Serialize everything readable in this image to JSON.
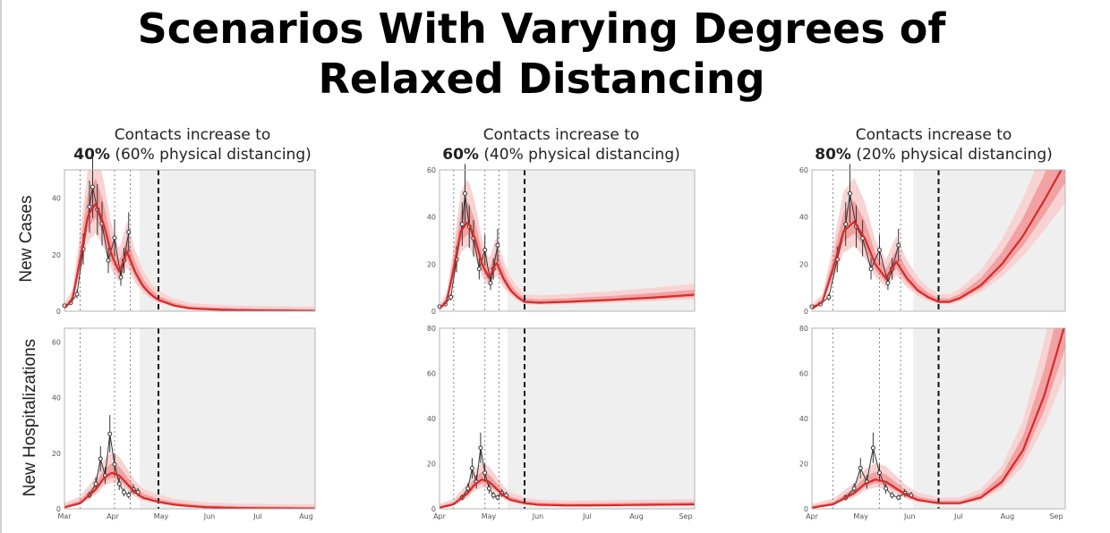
{
  "slide": {
    "title_line1": "Scenarios With Varying Degrees of",
    "title_line2": "Relaxed Distancing"
  },
  "row_labels": {
    "top": "New Cases",
    "bottom": "New Hospitalizations"
  },
  "panels": [
    {
      "title_line1": "Contacts increase to",
      "title_pct": "40%",
      "title_rest": " (60% physical distancing)"
    },
    {
      "title_line1": "Contacts increase to",
      "title_pct": "60%",
      "title_rest": " (40% physical distancing)"
    },
    {
      "title_line1": "Contacts increase to",
      "title_pct": "80%",
      "title_rest": " (20% physical distancing)"
    }
  ],
  "colors": {
    "model_line": "#d42b2b",
    "band_inner": "#f2a2a2",
    "band_outer": "#f8d3d3",
    "shade": "#efefef",
    "observed": "#333333"
  },
  "chart_data": [
    {
      "type": "line",
      "panel": "40% contacts",
      "metric": "New Cases",
      "ylim": [
        0,
        50
      ],
      "yticks": [
        0,
        20,
        40
      ],
      "x": [
        0,
        5,
        10,
        15,
        20,
        25,
        30,
        35,
        40,
        45,
        50,
        55,
        60,
        70,
        80,
        100,
        120,
        140,
        160
      ],
      "model": [
        1,
        4,
        18,
        34,
        38,
        31,
        20,
        14,
        21,
        14,
        9,
        6,
        4,
        2,
        1,
        0.5,
        0.3,
        0.2,
        0.1
      ],
      "observed": [
        2,
        3,
        6,
        22,
        37,
        44,
        36,
        31,
        18,
        26,
        12,
        18,
        28
      ],
      "observed_x": [
        0,
        4,
        8,
        12,
        16,
        18,
        21,
        24,
        28,
        32,
        36,
        38,
        41
      ],
      "vlines_dotted": [
        10,
        32,
        42
      ],
      "vline_dashed": 60,
      "shade_start": 48
    },
    {
      "type": "line",
      "panel": "60% contacts",
      "metric": "New Cases",
      "ylim": [
        0,
        60
      ],
      "yticks": [
        0,
        20,
        40,
        60
      ],
      "x": [
        0,
        5,
        10,
        15,
        20,
        25,
        30,
        35,
        40,
        45,
        50,
        55,
        60,
        70,
        90,
        120,
        150,
        180
      ],
      "model": [
        1,
        4,
        18,
        34,
        38,
        31,
        20,
        14,
        21,
        14,
        9,
        6,
        4,
        3.6,
        4,
        4.8,
        5.8,
        7
      ],
      "observed": [
        2,
        3,
        6,
        22,
        37,
        50,
        36,
        31,
        18,
        26,
        12,
        18,
        28
      ],
      "observed_x": [
        0,
        4,
        8,
        12,
        16,
        18,
        21,
        24,
        28,
        32,
        36,
        38,
        41
      ],
      "vlines_dotted": [
        10,
        32,
        42
      ],
      "vline_dashed": 60,
      "shade_start": 48
    },
    {
      "type": "line",
      "panel": "80% contacts",
      "metric": "New Cases",
      "ylim": [
        0,
        60
      ],
      "yticks": [
        0,
        20,
        40,
        60
      ],
      "x": [
        0,
        5,
        10,
        15,
        20,
        25,
        30,
        35,
        40,
        45,
        50,
        55,
        60,
        65,
        70,
        80,
        90,
        100,
        110,
        120
      ],
      "model": [
        1,
        4,
        18,
        34,
        38,
        31,
        20,
        14,
        21,
        14,
        9,
        6,
        4,
        4,
        5.5,
        11,
        20,
        32,
        47,
        63
      ],
      "observed": [
        2,
        3,
        6,
        22,
        37,
        50,
        36,
        31,
        18,
        26,
        12,
        18,
        28
      ],
      "observed_x": [
        0,
        4,
        8,
        12,
        16,
        18,
        21,
        24,
        28,
        32,
        36,
        38,
        41
      ],
      "vlines_dotted": [
        10,
        32,
        42
      ],
      "vline_dashed": 60,
      "shade_start": 48
    },
    {
      "type": "line",
      "panel": "40% contacts",
      "metric": "New Hospitalizations",
      "ylim": [
        0,
        65
      ],
      "yticks": [
        0,
        20,
        40,
        60
      ],
      "x": [
        0,
        10,
        20,
        25,
        30,
        35,
        40,
        45,
        50,
        60,
        70,
        80,
        90,
        110,
        130,
        160
      ],
      "model": [
        0.5,
        2,
        7,
        11,
        13,
        12,
        9,
        6,
        4,
        2.5,
        1.5,
        1,
        0.6,
        0.3,
        0.2,
        0.1
      ],
      "observed": [
        5,
        9,
        18,
        12,
        27,
        16,
        9,
        6,
        5,
        7,
        6
      ],
      "observed_x": [
        16,
        20,
        23,
        26,
        29,
        32,
        35,
        38,
        41,
        44,
        47
      ],
      "vlines_dotted": [
        10,
        32,
        42
      ],
      "vline_dashed": 60,
      "shade_start": 48,
      "xticks": [
        "Mar",
        "Apr",
        "May",
        "Jun",
        "Jul",
        "Aug"
      ]
    },
    {
      "type": "line",
      "panel": "60% contacts",
      "metric": "New Hospitalizations",
      "ylim": [
        0,
        80
      ],
      "yticks": [
        0,
        20,
        40,
        60,
        80
      ],
      "x": [
        0,
        10,
        20,
        25,
        30,
        35,
        40,
        45,
        50,
        60,
        70,
        90,
        120,
        150,
        180
      ],
      "model": [
        0.5,
        2,
        7,
        11,
        13,
        12,
        9,
        6,
        4,
        2.5,
        1.8,
        1.5,
        1.6,
        1.8,
        2
      ],
      "observed": [
        5,
        9,
        18,
        12,
        27,
        16,
        9,
        6,
        5,
        7,
        6
      ],
      "observed_x": [
        16,
        20,
        23,
        26,
        29,
        32,
        35,
        38,
        41,
        44,
        47
      ],
      "vlines_dotted": [
        10,
        32,
        42
      ],
      "vline_dashed": 60,
      "shade_start": 48,
      "xticks": [
        "Apr",
        "May",
        "Jun",
        "Jul",
        "Aug",
        "Sep"
      ]
    },
    {
      "type": "line",
      "panel": "80% contacts",
      "metric": "New Hospitalizations",
      "ylim": [
        0,
        80
      ],
      "yticks": [
        0,
        20,
        40,
        60,
        80
      ],
      "x": [
        0,
        10,
        20,
        25,
        30,
        35,
        40,
        45,
        50,
        60,
        70,
        80,
        90,
        100,
        110,
        120
      ],
      "model": [
        0.5,
        2,
        7,
        11,
        13,
        12,
        9,
        6,
        4,
        2.5,
        2.5,
        5,
        12,
        26,
        50,
        82
      ],
      "observed": [
        5,
        9,
        18,
        12,
        27,
        16,
        9,
        6,
        5,
        7,
        6
      ],
      "observed_x": [
        16,
        20,
        23,
        26,
        29,
        32,
        35,
        38,
        41,
        44,
        47
      ],
      "vlines_dotted": [
        10,
        32,
        42
      ],
      "vline_dashed": 60,
      "shade_start": 48,
      "xticks": [
        "Apr",
        "May",
        "Jun",
        "Jul",
        "Aug",
        "Sep"
      ]
    }
  ]
}
